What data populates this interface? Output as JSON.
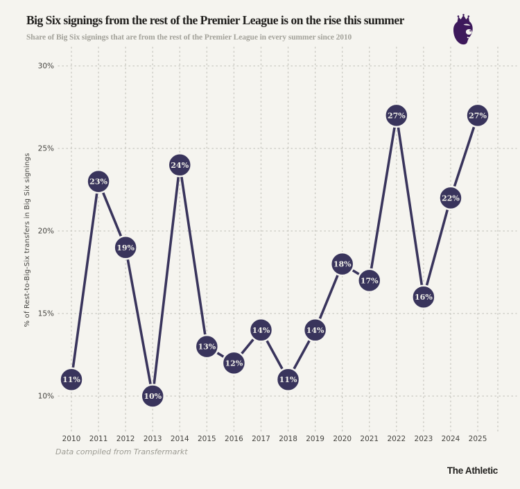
{
  "header": {
    "title": "Big Six signings from the rest of the Premier League is on the rise this summer",
    "subtitle": "Share of Big Six signings that are from the rest of the Premier League in every summer since 2010",
    "logo_icon": "premier-league-lion-icon"
  },
  "chart_data": {
    "type": "line",
    "title": "Big Six signings from the rest of the Premier League is on the rise this summer",
    "subtitle": "Share of Big Six signings that are from the rest of the Premier League in every summer since 2010",
    "x": [
      "2010",
      "2011",
      "2012",
      "2013",
      "2014",
      "2015",
      "2016",
      "2017",
      "2018",
      "2019",
      "2020",
      "2021",
      "2022",
      "2023",
      "2024",
      "2025"
    ],
    "values": [
      11,
      23,
      19,
      10,
      24,
      13,
      12,
      14,
      11,
      14,
      18,
      17,
      27,
      16,
      22,
      27
    ],
    "point_labels": [
      "11%",
      "23%",
      "19%",
      "10%",
      "24%",
      "13%",
      "12%",
      "14%",
      "11%",
      "14%",
      "18%",
      "17%",
      "27%",
      "16%",
      "22%",
      "27%"
    ],
    "xlabel": "",
    "ylabel": "% of Rest-to-Big-Six transfers in Big Six signings",
    "yticks": [
      10,
      15,
      20,
      25,
      30
    ],
    "ytick_labels": [
      "10%",
      "15%",
      "20%",
      "25%",
      "30%"
    ],
    "ylim": [
      10,
      30
    ],
    "grid": "dotted, vertical per year and horizontal per 5%",
    "legend": "none",
    "marker": "filled circle with value label inside",
    "line_color": "#39345c",
    "point_color": "#39345c",
    "point_label_color": "#f2f1ea",
    "background_color": "#f5f4ef",
    "grid_color": "#c7c6bf",
    "logo_color": "#3d195b"
  },
  "footer": {
    "source": "Data compiled from Transfermarkt",
    "brand": "The Athletic"
  }
}
